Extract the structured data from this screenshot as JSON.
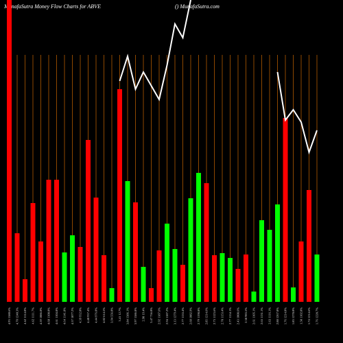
{
  "chart_data": {
    "type": "bar",
    "title": "MunafaSutra  Money Flow  Charts for ABVE",
    "subtitle": "() MunafaSutra.com",
    "categories": [
      "4.93 1580.6%",
      "4.70 1240.3%",
      "4.62 1114.0%",
      "4.62 1111.7%",
      "4.59 1086.0%",
      "4.60 1100.0%",
      "4.61 1104.8%",
      "4.64 1141.8%",
      "4.57 1077.2%",
      "4.39 932.0%",
      "4.40 937.4%",
      "4.44 976.0%",
      "4.02 614.5%",
      "3.94 556.0%",
      "3.41 12.7%",
      "3.84 1386.1%",
      "3.97 1586.8%",
      "2.98 19.4%",
      "3.47 756.0%",
      "2.92 1187.6%",
      "2.94 1187.2%",
      "3.13 1279.4%",
      "2.77 1135.4%",
      "2.60 1082.9%",
      "2.79 1198.8%",
      "2.85 1214.6%",
      "2.73 1123.6%",
      "2.78 1153.4%",
      "2.77 1154.1%",
      "2.43 1008.6%",
      "2.38 983.5%",
      "2.61 1105.1%",
      "2.65 1131.1%",
      "2.63 1116.1%",
      "2.88 1267.8%",
      "1.76 1214.0%",
      "1.83 1278.0%",
      "1.58 1102.8%",
      "1.74 1214.6%",
      "1.76 1228.7%"
    ],
    "values": [
      440,
      100,
      33,
      144,
      88,
      178,
      178,
      72,
      97,
      80,
      236,
      152,
      68,
      20,
      310,
      176,
      145,
      51,
      20,
      75,
      114,
      77,
      54,
      151,
      188,
      173,
      68,
      71,
      64,
      48,
      69,
      15,
      119,
      105,
      142,
      268,
      21,
      88,
      163,
      69
    ],
    "colors": [
      "#ff0000",
      "#ff0000",
      "#ff0000",
      "#ff0000",
      "#ff0000",
      "#ff0000",
      "#ff0000",
      "#00ff00",
      "#00ff00",
      "#ff0000",
      "#ff0000",
      "#ff0000",
      "#ff0000",
      "#00ff00",
      "#ff0000",
      "#00ff00",
      "#ff0000",
      "#00ff00",
      "#ff0000",
      "#ff0000",
      "#00ff00",
      "#00ff00",
      "#ff0000",
      "#00ff00",
      "#00ff00",
      "#ff0000",
      "#ff0000",
      "#00ff00",
      "#00ff00",
      "#ff0000",
      "#ff0000",
      "#00ff00",
      "#00ff00",
      "#00ff00",
      "#00ff00",
      "#ff0000",
      "#00ff00",
      "#ff0000",
      "#ff0000",
      "#00ff00"
    ],
    "line": {
      "color": "#ffffff",
      "values": [
        null,
        null,
        null,
        null,
        null,
        null,
        null,
        null,
        null,
        null,
        null,
        null,
        null,
        null,
        322,
        358,
        310,
        335,
        315,
        295,
        345,
        405,
        385,
        440,
        null,
        null,
        null,
        null,
        null,
        null,
        null,
        null,
        null,
        null,
        335,
        265,
        280,
        262,
        218,
        250
      ]
    },
    "ylim": [
      0,
      440
    ]
  }
}
